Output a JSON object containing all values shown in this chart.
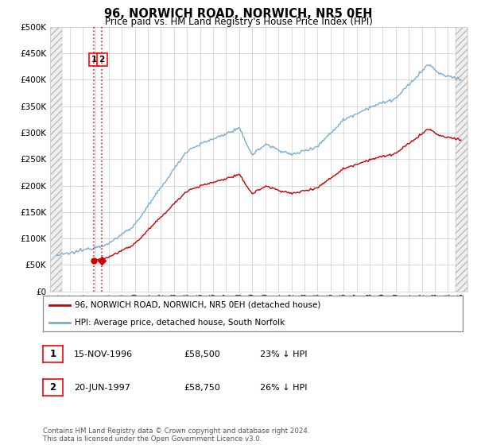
{
  "title": "96, NORWICH ROAD, NORWICH, NR5 0EH",
  "subtitle": "Price paid vs. HM Land Registry's House Price Index (HPI)",
  "legend_label_red": "96, NORWICH ROAD, NORWICH, NR5 0EH (detached house)",
  "legend_label_blue": "HPI: Average price, detached house, South Norfolk",
  "transaction1_date": "15-NOV-1996",
  "transaction1_price": "£58,500",
  "transaction1_hpi": "23% ↓ HPI",
  "transaction2_date": "20-JUN-1997",
  "transaction2_price": "£58,750",
  "transaction2_hpi": "26% ↓ HPI",
  "footer": "Contains HM Land Registry data © Crown copyright and database right 2024.\nThis data is licensed under the Open Government Licence v3.0.",
  "ylim_min": 0,
  "ylim_max": 500000,
  "xlim_min": 1993.5,
  "xlim_max": 2025.5,
  "red_color": "#cc0000",
  "blue_color": "#7aadd4",
  "grid_color": "#cccccc",
  "transaction1_year": 1996.88,
  "transaction2_year": 1997.47,
  "transaction1_value": 58500,
  "transaction2_value": 58750,
  "hatch_left_end": 1994.42,
  "hatch_right_start": 2024.58
}
